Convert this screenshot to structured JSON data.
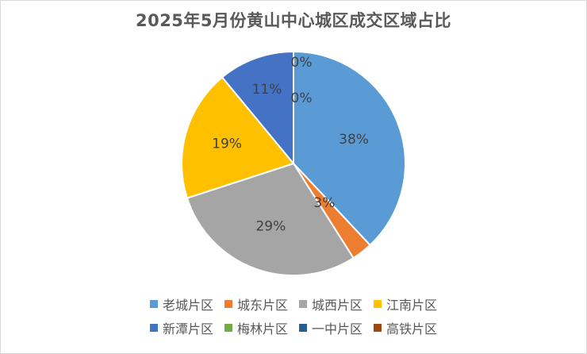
{
  "chart_data": {
    "type": "pie",
    "title": "2025年5月份黄山中心城区成交区域占比",
    "categories": [
      "老城片区",
      "城东片区",
      "城西片区",
      "江南片区",
      "新潭片区",
      "梅林片区",
      "一中片区",
      "高铁片区"
    ],
    "values": [
      38,
      3,
      29,
      19,
      11,
      0,
      0,
      0
    ],
    "data_labels": [
      "38%",
      "3%",
      "29%",
      "19%",
      "11%",
      "0%",
      "0%",
      ""
    ],
    "colors": [
      "#5b9bd5",
      "#ed7d31",
      "#a5a5a5",
      "#ffc000",
      "#4472c4",
      "#70ad47",
      "#255e91",
      "#9e480e"
    ],
    "legend_position": "bottom",
    "start_angle": "12 o'clock",
    "direction": "clockwise"
  }
}
